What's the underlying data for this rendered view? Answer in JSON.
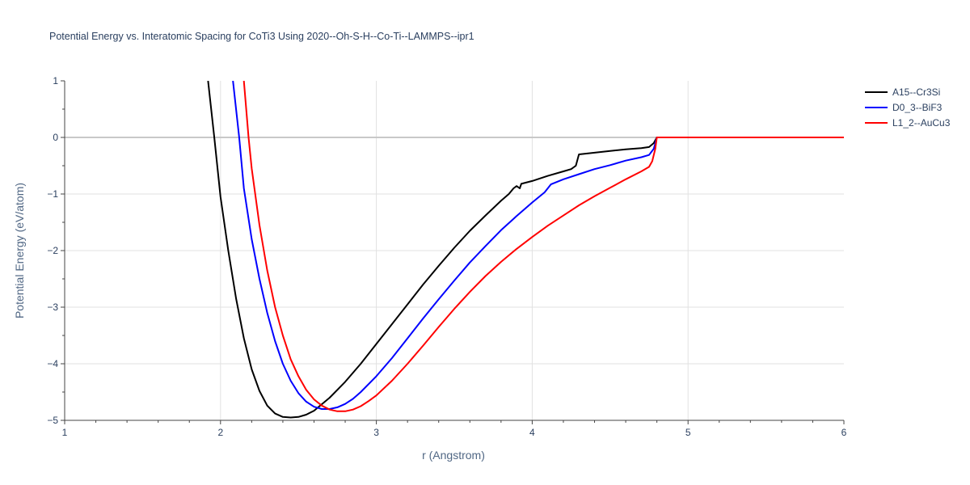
{
  "chart_data": {
    "type": "line",
    "title": "Potential Energy vs. Interatomic Spacing for CoTi3 Using 2020--Oh-S-H--Co-Ti--LAMMPS--ipr1",
    "xlabel": "r (Angstrom)",
    "ylabel": "Potential Energy (eV/atom)",
    "xlim": [
      1,
      6
    ],
    "ylim": [
      -5,
      1
    ],
    "x_ticks": [
      1,
      2,
      3,
      4,
      5,
      6
    ],
    "x_tick_labels": [
      "1",
      "2",
      "3",
      "4",
      "5",
      "6"
    ],
    "y_ticks": [
      1,
      0,
      -1,
      -2,
      -3,
      -4,
      -5
    ],
    "y_tick_labels": [
      "1",
      "0",
      "−1",
      "−2",
      "−3",
      "−4",
      "−5"
    ],
    "grid": true,
    "legend_position": "top-right",
    "series": [
      {
        "name": "A15--Cr3Si",
        "color": "#000000",
        "points": [
          [
            1.92,
            1.0
          ],
          [
            1.96,
            0.0
          ],
          [
            2.0,
            -1.05
          ],
          [
            2.05,
            -2.0
          ],
          [
            2.1,
            -2.85
          ],
          [
            2.15,
            -3.55
          ],
          [
            2.2,
            -4.1
          ],
          [
            2.25,
            -4.48
          ],
          [
            2.3,
            -4.74
          ],
          [
            2.35,
            -4.88
          ],
          [
            2.4,
            -4.94
          ],
          [
            2.45,
            -4.95
          ],
          [
            2.5,
            -4.94
          ],
          [
            2.55,
            -4.9
          ],
          [
            2.6,
            -4.83
          ],
          [
            2.7,
            -4.6
          ],
          [
            2.8,
            -4.32
          ],
          [
            2.9,
            -4.0
          ],
          [
            3.0,
            -3.65
          ],
          [
            3.1,
            -3.3
          ],
          [
            3.2,
            -2.95
          ],
          [
            3.3,
            -2.6
          ],
          [
            3.4,
            -2.27
          ],
          [
            3.5,
            -1.95
          ],
          [
            3.6,
            -1.65
          ],
          [
            3.7,
            -1.38
          ],
          [
            3.8,
            -1.12
          ],
          [
            3.85,
            -1.0
          ],
          [
            3.88,
            -0.9
          ],
          [
            3.9,
            -0.86
          ],
          [
            3.92,
            -0.9
          ],
          [
            3.93,
            -0.82
          ],
          [
            4.0,
            -0.77
          ],
          [
            4.1,
            -0.68
          ],
          [
            4.2,
            -0.6
          ],
          [
            4.25,
            -0.56
          ],
          [
            4.28,
            -0.5
          ],
          [
            4.3,
            -0.3
          ],
          [
            4.4,
            -0.27
          ],
          [
            4.5,
            -0.24
          ],
          [
            4.6,
            -0.21
          ],
          [
            4.7,
            -0.19
          ],
          [
            4.75,
            -0.17
          ],
          [
            4.78,
            -0.1
          ],
          [
            4.8,
            0.0
          ],
          [
            5.0,
            0.0
          ],
          [
            6.0,
            0.0
          ]
        ]
      },
      {
        "name": "D0_3--BiF3",
        "color": "#0000ff",
        "points": [
          [
            2.08,
            1.0
          ],
          [
            2.12,
            0.0
          ],
          [
            2.15,
            -0.9
          ],
          [
            2.2,
            -1.8
          ],
          [
            2.25,
            -2.5
          ],
          [
            2.3,
            -3.1
          ],
          [
            2.35,
            -3.6
          ],
          [
            2.4,
            -4.0
          ],
          [
            2.45,
            -4.3
          ],
          [
            2.5,
            -4.52
          ],
          [
            2.55,
            -4.67
          ],
          [
            2.6,
            -4.76
          ],
          [
            2.65,
            -4.8
          ],
          [
            2.7,
            -4.8
          ],
          [
            2.75,
            -4.77
          ],
          [
            2.8,
            -4.71
          ],
          [
            2.85,
            -4.62
          ],
          [
            2.9,
            -4.5
          ],
          [
            3.0,
            -4.22
          ],
          [
            3.1,
            -3.9
          ],
          [
            3.2,
            -3.55
          ],
          [
            3.3,
            -3.2
          ],
          [
            3.4,
            -2.86
          ],
          [
            3.5,
            -2.53
          ],
          [
            3.6,
            -2.21
          ],
          [
            3.7,
            -1.92
          ],
          [
            3.8,
            -1.64
          ],
          [
            3.9,
            -1.39
          ],
          [
            4.0,
            -1.15
          ],
          [
            4.08,
            -0.97
          ],
          [
            4.12,
            -0.83
          ],
          [
            4.2,
            -0.74
          ],
          [
            4.3,
            -0.65
          ],
          [
            4.4,
            -0.56
          ],
          [
            4.5,
            -0.49
          ],
          [
            4.6,
            -0.41
          ],
          [
            4.7,
            -0.35
          ],
          [
            4.75,
            -0.31
          ],
          [
            4.78,
            -0.2
          ],
          [
            4.8,
            0.0
          ],
          [
            5.0,
            0.0
          ],
          [
            6.0,
            0.0
          ]
        ]
      },
      {
        "name": "L1_2--AuCu3",
        "color": "#ff0000",
        "points": [
          [
            2.15,
            1.0
          ],
          [
            2.18,
            0.0
          ],
          [
            2.2,
            -0.55
          ],
          [
            2.25,
            -1.55
          ],
          [
            2.3,
            -2.35
          ],
          [
            2.35,
            -3.0
          ],
          [
            2.4,
            -3.5
          ],
          [
            2.45,
            -3.92
          ],
          [
            2.5,
            -4.22
          ],
          [
            2.55,
            -4.46
          ],
          [
            2.6,
            -4.63
          ],
          [
            2.65,
            -4.74
          ],
          [
            2.7,
            -4.81
          ],
          [
            2.75,
            -4.84
          ],
          [
            2.8,
            -4.84
          ],
          [
            2.85,
            -4.81
          ],
          [
            2.9,
            -4.75
          ],
          [
            2.95,
            -4.66
          ],
          [
            3.0,
            -4.56
          ],
          [
            3.1,
            -4.3
          ],
          [
            3.2,
            -4.0
          ],
          [
            3.3,
            -3.68
          ],
          [
            3.4,
            -3.35
          ],
          [
            3.5,
            -3.03
          ],
          [
            3.6,
            -2.73
          ],
          [
            3.7,
            -2.45
          ],
          [
            3.8,
            -2.2
          ],
          [
            3.9,
            -1.97
          ],
          [
            4.0,
            -1.76
          ],
          [
            4.1,
            -1.56
          ],
          [
            4.2,
            -1.38
          ],
          [
            4.3,
            -1.2
          ],
          [
            4.4,
            -1.04
          ],
          [
            4.5,
            -0.89
          ],
          [
            4.6,
            -0.74
          ],
          [
            4.7,
            -0.6
          ],
          [
            4.75,
            -0.52
          ],
          [
            4.77,
            -0.42
          ],
          [
            4.79,
            -0.2
          ],
          [
            4.8,
            0.0
          ],
          [
            5.0,
            0.0
          ],
          [
            6.0,
            0.0
          ]
        ]
      }
    ]
  }
}
